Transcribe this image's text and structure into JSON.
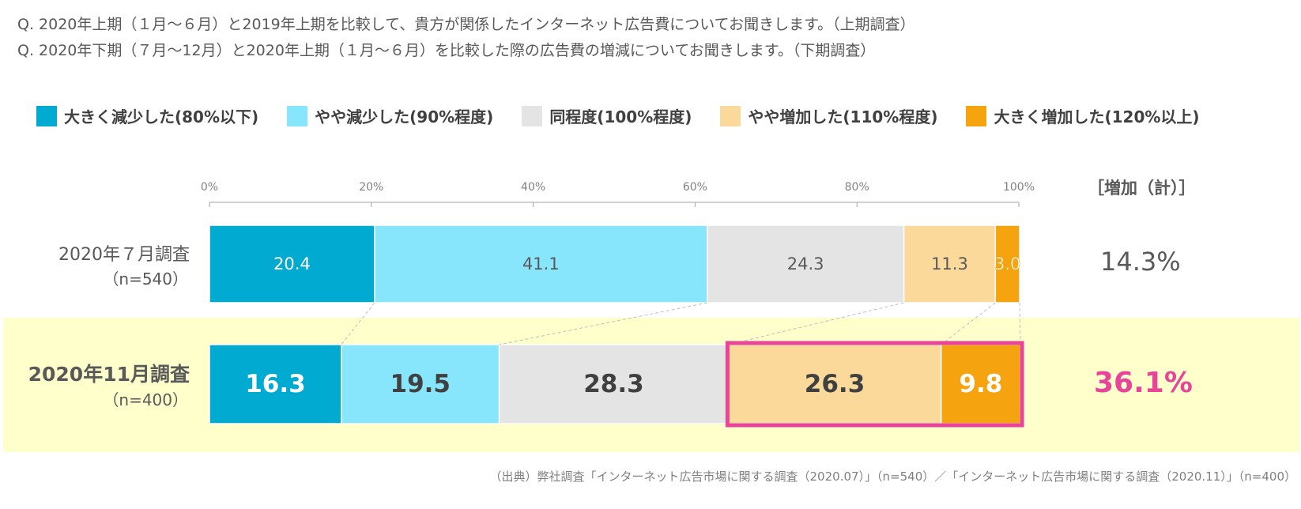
{
  "questions": [
    "Q.  2020年上期（１月～６月）と2019年上期を比較して、貴方が関係したインターネット広告費についてお聞きします。（上期調査）",
    "Q.  2020年下期（７月～12月）と2020年上期（１月～６月）を比較した際の広告費の増減についてお聞きします。（下期調査）"
  ],
  "legend": [
    {
      "label": "大きく減少した(80%以下)",
      "color": "#00aad1"
    },
    {
      "label": "やや減少した(90%程度)",
      "color": "#87e6fc"
    },
    {
      "label": "同程度(100%程度)",
      "color": "#e4e4e4"
    },
    {
      "label": "やや増加した(110%程度)",
      "color": "#fad99b"
    },
    {
      "label": "大きく増加した(120%以上)",
      "color": "#f5a30f"
    }
  ],
  "chart_data": {
    "type": "bar",
    "orientation": "horizontal",
    "stacked": true,
    "xlim": [
      0,
      100
    ],
    "xticks": [
      "0%",
      "20%",
      "40%",
      "60%",
      "80%",
      "100%"
    ],
    "rows": [
      {
        "label": "2020年７月調査",
        "sublabel": "（n=540）",
        "values": [
          20.4,
          41.1,
          24.3,
          11.3,
          3.0
        ],
        "value_labels": [
          "20.4",
          "41.1",
          "24.3",
          "11.3",
          "3.0"
        ],
        "increase_total": "14.3%"
      },
      {
        "label": "2020年11月調査",
        "sublabel": "（n=400）",
        "values": [
          16.3,
          19.5,
          28.3,
          26.3,
          9.8
        ],
        "value_labels": [
          "16.3",
          "19.5",
          "28.3",
          "26.3",
          "9.8"
        ],
        "increase_total": "36.1%"
      }
    ],
    "series": [
      {
        "name": "大きく減少した(80%以下)",
        "values": [
          20.4,
          16.3
        ]
      },
      {
        "name": "やや減少した(90%程度)",
        "values": [
          41.1,
          19.5
        ]
      },
      {
        "name": "同程度(100%程度)",
        "values": [
          24.3,
          28.3
        ]
      },
      {
        "name": "やや増加した(110%程度)",
        "values": [
          11.3,
          26.3
        ]
      },
      {
        "name": "大きく増加した(120%以上)",
        "values": [
          3.0,
          9.8
        ]
      }
    ],
    "increase_header": "［増加（計）］",
    "highlight_color": "#e8449a"
  },
  "source": "（出典）弊社調査「インターネット広告市場に関する調査（2020.07）」（n=540）／「インターネット広告市場に関する調査（2020.11）」（n=400）"
}
